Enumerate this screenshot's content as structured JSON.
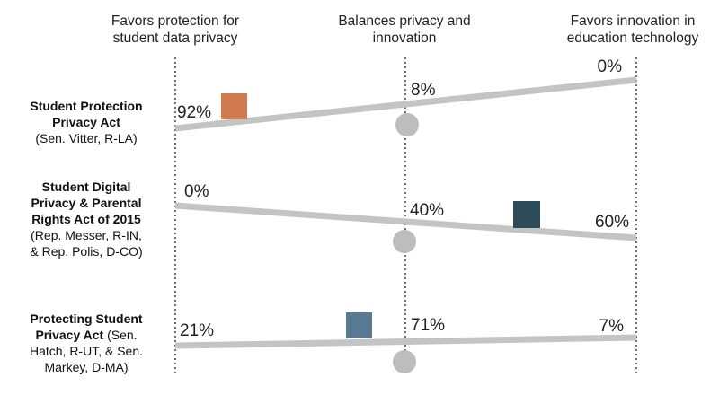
{
  "column_headers": [
    {
      "line1": "Favors protection for",
      "line2": "student data privacy"
    },
    {
      "line1": "Balances privacy and",
      "line2": "innovation"
    },
    {
      "line1": "Favors innovation in",
      "line2": "education technology"
    }
  ],
  "rows": [
    {
      "title_lines": [
        "Student Protection",
        "Privacy Act"
      ],
      "sponsor_lines": [
        "(Sen. Vitter, R-LA)"
      ],
      "values": [
        "92%",
        "8%",
        "0%"
      ],
      "box_color": "#d07a4e"
    },
    {
      "title_lines": [
        "Student Digital",
        "Privacy & Parental",
        "Rights Act of 2015"
      ],
      "sponsor_lines": [
        "(Rep. Messer, R-IN,",
        "& Rep. Polis, D-CO)"
      ],
      "values": [
        "0%",
        "40%",
        "60%"
      ],
      "box_color": "#2d4c5a"
    },
    {
      "title_lines": [
        "Protecting Student",
        "Privacy Act"
      ],
      "sponsor_inline": "(Sen.",
      "sponsor_lines": [
        "Hatch, R-UT, & Sen.",
        "Markey, D-MA)"
      ],
      "values": [
        "21%",
        "71%",
        "7%"
      ],
      "box_color": "#587a93"
    }
  ],
  "colors": {
    "beam": "#c4c4c4",
    "fulcrum": "#bdbdbd",
    "guide": "#222222"
  }
}
